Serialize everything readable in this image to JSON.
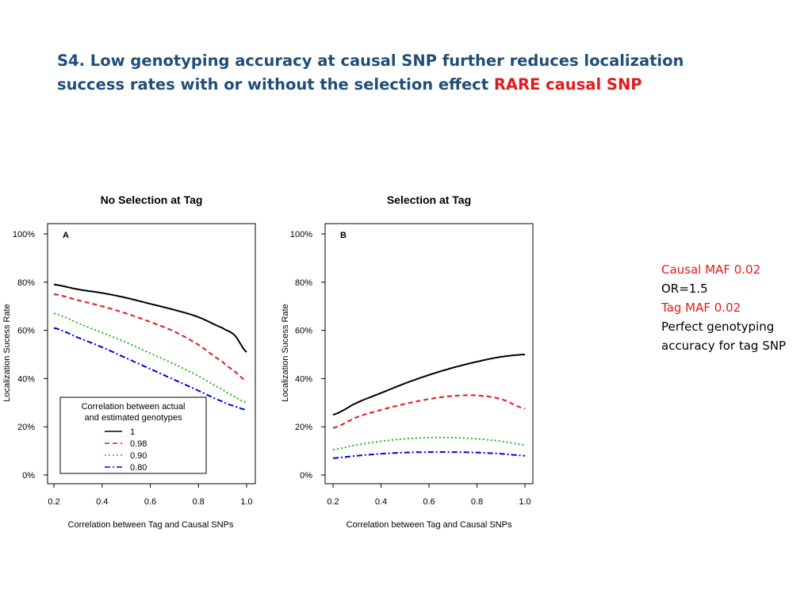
{
  "slide": {
    "title_main": "S4. Low genotyping accuracy at causal SNP further reduces localization success rates with or without the selection effect ",
    "title_highlight": "RARE causal SNP",
    "notes": [
      {
        "text": "Causal MAF 0.02",
        "color": "#e3191b"
      },
      {
        "text": "OR=1.5",
        "color": "#000000"
      },
      {
        "text": "Tag MAF 0.02",
        "color": "#e3191b"
      },
      {
        "text": "Perfect genotyping accuracy for tag SNP",
        "color": "#000000"
      }
    ]
  },
  "chart_data": [
    {
      "type": "line",
      "title": "No Selection at Tag",
      "panel_label": "A",
      "xlabel": "Correlation between Tag and Causal SNPs",
      "ylabel": "Localization Sucess Rate",
      "xlim": [
        0.2,
        1.0
      ],
      "ylim": [
        0,
        100
      ],
      "xticks": [
        "0.2",
        "0.4",
        "0.6",
        "0.8",
        "1.0"
      ],
      "yticks": [
        "0%",
        "20%",
        "40%",
        "60%",
        "80%",
        "100%"
      ],
      "legend": {
        "title": "Correlation between actual and estimated genotypes",
        "title_line1": "Correlation between actual",
        "title_line2": "and estimated genotypes",
        "placement": "bottom-left"
      },
      "x": [
        0.2,
        0.3,
        0.4,
        0.5,
        0.6,
        0.7,
        0.8,
        0.9,
        0.95,
        1.0
      ],
      "series": [
        {
          "name": "1",
          "color": "#000000",
          "dash": "solid",
          "values": [
            79,
            77,
            75.5,
            73.5,
            71,
            68.5,
            65.5,
            61,
            58,
            51
          ]
        },
        {
          "name": "0.98",
          "color": "#e3191b",
          "dash": "dashed",
          "values": [
            75,
            72.5,
            70,
            67,
            63.5,
            59.5,
            54,
            47,
            43,
            39
          ]
        },
        {
          "name": "0.90",
          "color": "#22b522",
          "dash": "dotted",
          "values": [
            67,
            63,
            59,
            55,
            50.5,
            46,
            41,
            35.5,
            32.5,
            30
          ]
        },
        {
          "name": "0.80",
          "color": "#0000e0",
          "dash": "dashdot",
          "values": [
            61,
            57,
            53,
            48.5,
            44,
            39.5,
            35,
            30.5,
            28.5,
            27
          ]
        }
      ]
    },
    {
      "type": "line",
      "title": "Selection at Tag",
      "panel_label": "B",
      "xlabel": "Correlation between Tag and Causal SNPs",
      "ylabel": "Localization Sucess Rate",
      "xlim": [
        0.2,
        1.0
      ],
      "ylim": [
        0,
        100
      ],
      "xticks": [
        "0.2",
        "0.4",
        "0.6",
        "0.8",
        "1.0"
      ],
      "yticks": [
        "0%",
        "20%",
        "40%",
        "60%",
        "80%",
        "100%"
      ],
      "x": [
        0.2,
        0.3,
        0.4,
        0.5,
        0.6,
        0.7,
        0.8,
        0.9,
        1.0
      ],
      "series": [
        {
          "name": "1",
          "color": "#000000",
          "dash": "solid",
          "values": [
            25,
            30,
            34,
            38,
            41.5,
            44.5,
            47,
            49,
            50
          ]
        },
        {
          "name": "0.98",
          "color": "#e3191b",
          "dash": "dashed",
          "values": [
            19.5,
            24,
            27,
            29.5,
            31.5,
            32.8,
            33,
            31.5,
            27.5
          ]
        },
        {
          "name": "0.90",
          "color": "#22b522",
          "dash": "dotted",
          "values": [
            10.5,
            12.5,
            14,
            15,
            15.5,
            15.5,
            15,
            14,
            12.5
          ]
        },
        {
          "name": "0.80",
          "color": "#0000e0",
          "dash": "dashdot",
          "values": [
            7,
            8,
            8.8,
            9.3,
            9.5,
            9.5,
            9.3,
            8.8,
            8
          ]
        }
      ]
    }
  ]
}
